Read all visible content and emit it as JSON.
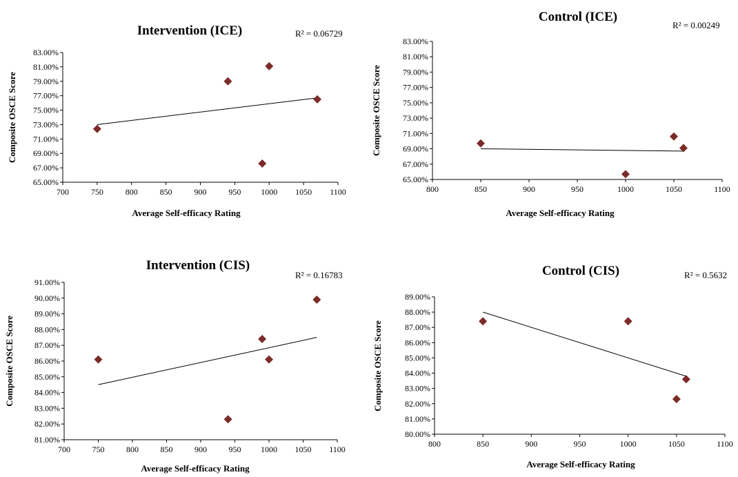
{
  "chart_data": [
    {
      "type": "scatter",
      "title": "Intervention (ICE)",
      "xlabel": "Average Self-efficacy Rating",
      "ylabel": "Composite OSCE Score",
      "xlim": [
        700,
        1100
      ],
      "ylim": [
        0.65,
        0.83
      ],
      "x_ticks": [
        700,
        750,
        800,
        850,
        900,
        950,
        1000,
        1050,
        1100
      ],
      "x_tick_labels": [
        "700",
        "750",
        "800",
        "850",
        "900",
        "950",
        "1000",
        "1050",
        "1100"
      ],
      "y_ticks": [
        0.65,
        0.67,
        0.69,
        0.71,
        0.73,
        0.75,
        0.77,
        0.79,
        0.81,
        0.83
      ],
      "y_tick_labels": [
        "65.00%",
        "67.00%",
        "69.00%",
        "71.00%",
        "73.00%",
        "75.00%",
        "77.00%",
        "79.00%",
        "81.00%",
        "83.00%"
      ],
      "points": [
        {
          "x": 750,
          "y": 0.724
        },
        {
          "x": 940,
          "y": 0.79
        },
        {
          "x": 990,
          "y": 0.676
        },
        {
          "x": 1000,
          "y": 0.811
        },
        {
          "x": 1070,
          "y": 0.765
        }
      ],
      "trendline": {
        "x": [
          750,
          1070
        ],
        "y": [
          0.73,
          0.767
        ]
      },
      "r2_label": "R² = 0.06729",
      "marker_color": "#7b2c28",
      "grid": false
    },
    {
      "type": "scatter",
      "title": "Control (ICE)",
      "xlabel": "Average Self-efficacy Rating",
      "ylabel": "Composite OSCE Score",
      "xlim": [
        800,
        1100
      ],
      "ylim": [
        0.65,
        0.83
      ],
      "x_ticks": [
        800,
        850,
        900,
        950,
        1000,
        1050,
        1100
      ],
      "x_tick_labels": [
        "800",
        "850",
        "900",
        "950",
        "1000",
        "1050",
        "1100"
      ],
      "y_ticks": [
        0.65,
        0.67,
        0.69,
        0.71,
        0.73,
        0.75,
        0.77,
        0.79,
        0.81,
        0.83
      ],
      "y_tick_labels": [
        "65.00%",
        "67.00%",
        "69.00%",
        "71.00%",
        "73.00%",
        "75.00%",
        "77.00%",
        "79.00%",
        "81.00%",
        "83.00%"
      ],
      "points": [
        {
          "x": 850,
          "y": 0.697
        },
        {
          "x": 1000,
          "y": 0.657
        },
        {
          "x": 1050,
          "y": 0.706
        },
        {
          "x": 1060,
          "y": 0.691
        }
      ],
      "trendline": {
        "x": [
          850,
          1060
        ],
        "y": [
          0.69,
          0.687
        ]
      },
      "r2_label": "R² = 0.00249",
      "marker_color": "#7b2c28",
      "grid": false
    },
    {
      "type": "scatter",
      "title": "Intervention (CIS)",
      "xlabel": "Average Self-efficacy Rating",
      "ylabel": "Composite OSCE Score",
      "xlim": [
        700,
        1100
      ],
      "ylim": [
        0.81,
        0.91
      ],
      "x_ticks": [
        700,
        750,
        800,
        850,
        900,
        950,
        1000,
        1050,
        1100
      ],
      "x_tick_labels": [
        "700",
        "750",
        "800",
        "850",
        "900",
        "950",
        "1000",
        "1050",
        "1100"
      ],
      "y_ticks": [
        0.81,
        0.82,
        0.83,
        0.84,
        0.85,
        0.86,
        0.87,
        0.88,
        0.89,
        0.9,
        0.91
      ],
      "y_tick_labels": [
        "81.00%",
        "82.00%",
        "83.00%",
        "84.00%",
        "85.00%",
        "86.00%",
        "87.00%",
        "88.00%",
        "89.00%",
        "90.00%",
        "91.00%"
      ],
      "points": [
        {
          "x": 750,
          "y": 0.861
        },
        {
          "x": 940,
          "y": 0.823
        },
        {
          "x": 990,
          "y": 0.874
        },
        {
          "x": 1000,
          "y": 0.861
        },
        {
          "x": 1070,
          "y": 0.899
        }
      ],
      "trendline": {
        "x": [
          750,
          1070
        ],
        "y": [
          0.845,
          0.875
        ]
      },
      "r2_label": "R² = 0.16783",
      "marker_color": "#7b2c28",
      "grid": false
    },
    {
      "type": "scatter",
      "title": "Control (CIS)",
      "xlabel": "Average Self-efficacy Rating",
      "ylabel": "Composite OSCE Score",
      "xlim": [
        800,
        1100
      ],
      "ylim": [
        0.8,
        0.89
      ],
      "x_ticks": [
        800,
        850,
        900,
        950,
        1000,
        1050,
        1100
      ],
      "x_tick_labels": [
        "800",
        "850",
        "900",
        "950",
        "1000",
        "1050",
        "1100"
      ],
      "y_ticks": [
        0.8,
        0.81,
        0.82,
        0.83,
        0.84,
        0.85,
        0.86,
        0.87,
        0.88,
        0.89
      ],
      "y_tick_labels": [
        "80.00%",
        "81.00%",
        "82.00%",
        "83.00%",
        "84.00%",
        "85.00%",
        "86.00%",
        "87.00%",
        "88.00%",
        "89.00%"
      ],
      "points": [
        {
          "x": 850,
          "y": 0.874
        },
        {
          "x": 1000,
          "y": 0.874
        },
        {
          "x": 1050,
          "y": 0.823
        },
        {
          "x": 1060,
          "y": 0.836
        }
      ],
      "trendline": {
        "x": [
          850,
          1060
        ],
        "y": [
          0.88,
          0.838
        ]
      },
      "r2_label": "R² = 0.5632",
      "marker_color": "#7b2c28",
      "grid": false
    }
  ]
}
